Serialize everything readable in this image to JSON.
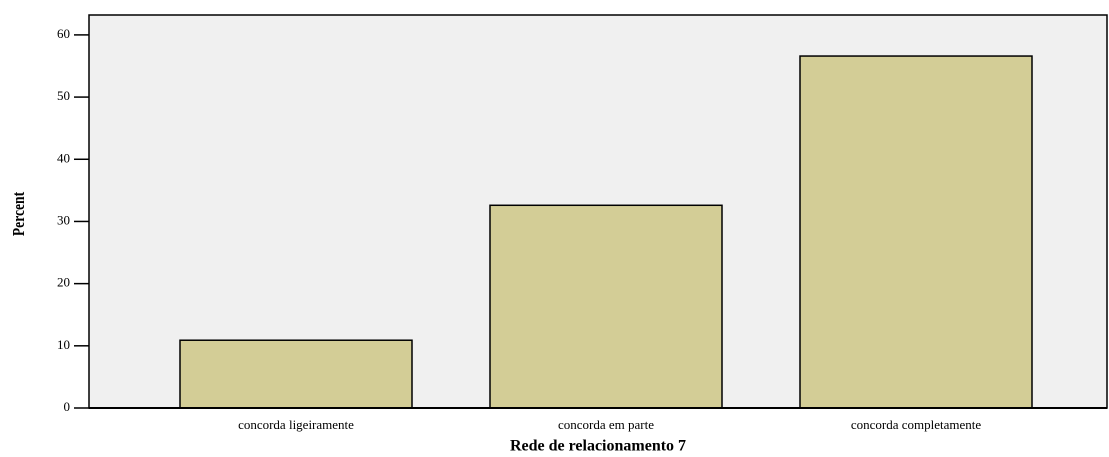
{
  "chart_data": {
    "type": "bar",
    "categories": [
      "concorda ligeiramente",
      "concorda em parte",
      "concorda completamente"
    ],
    "values": [
      10.9,
      32.6,
      56.6
    ],
    "color": "#d3cd96",
    "xlabel": "Rede de relacionamento 7",
    "ylabel": "Percent",
    "ylim": [
      0,
      63.2
    ],
    "yticks": [
      0,
      10,
      20,
      30,
      40,
      50,
      60
    ]
  }
}
